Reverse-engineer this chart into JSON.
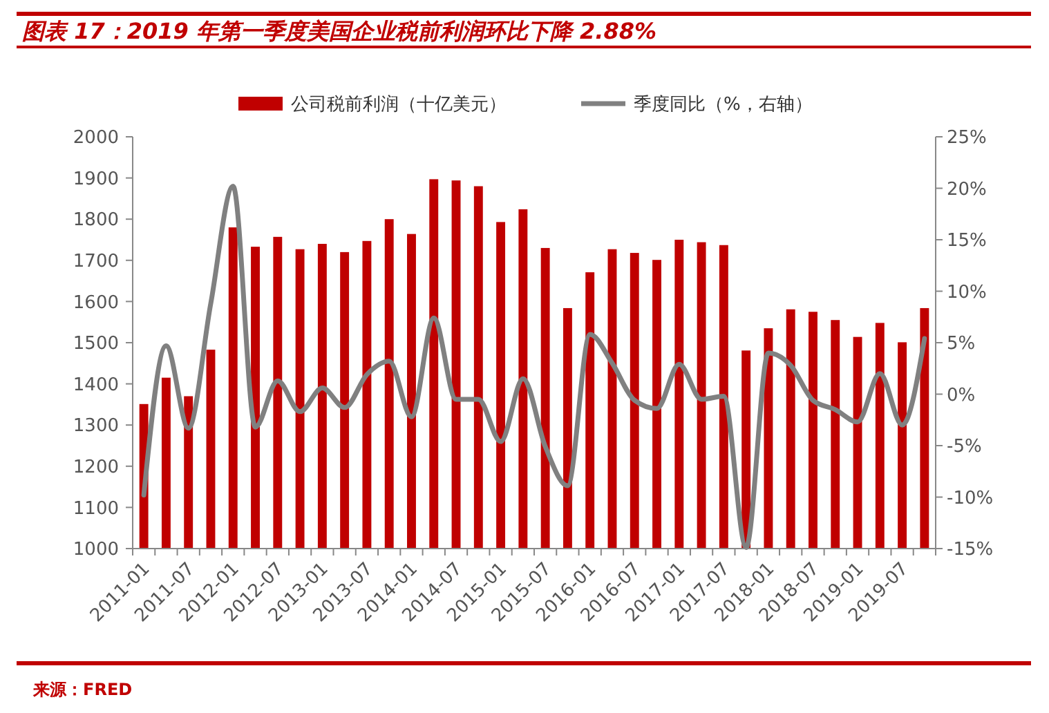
{
  "chart_data": {
    "type": "bar",
    "title": "图表 17：2019 年第一季度美国企业税前利润环比下降 2.88%",
    "categories": [
      "2011-01",
      null,
      "2011-07",
      null,
      "2012-01",
      null,
      "2012-07",
      null,
      "2013-01",
      null,
      "2013-07",
      null,
      "2014-01",
      null,
      "2014-07",
      null,
      "2015-01",
      null,
      "2015-07",
      null,
      "2016-01",
      null,
      "2016-07",
      null,
      "2017-01",
      null,
      "2017-07",
      null,
      "2018-01",
      null,
      "2018-07",
      null,
      "2019-01",
      null,
      "2019-07",
      null
    ],
    "series": [
      {
        "name": "公司税前利润（十亿美元）",
        "type": "bar",
        "color": "#c00000",
        "values": [
          1351,
          1415,
          1370,
          1483,
          1780,
          1733,
          1757,
          1727,
          1740,
          1720,
          1747,
          1800,
          1764,
          1897,
          1894,
          1880,
          1793,
          1824,
          1730,
          1584,
          1671,
          1727,
          1718,
          1701,
          1750,
          1744,
          1737,
          1481,
          1535,
          1581,
          1575,
          1555,
          1514,
          1548,
          1501,
          1584
        ]
      },
      {
        "name": "季度同比（%，右轴）",
        "type": "line",
        "axis": "y2",
        "color": "#808080",
        "values": [
          -9.8,
          4.7,
          -3.3,
          8.8,
          20.2,
          -3.2,
          1.3,
          -1.7,
          0.6,
          -1.3,
          1.9,
          3.2,
          -2.2,
          7.4,
          -0.5,
          -0.5,
          -4.6,
          1.5,
          -5.1,
          -8.9,
          5.8,
          3.0,
          -0.6,
          -1.4,
          2.9,
          -0.5,
          -0.2,
          -14.9,
          4.0,
          2.8,
          -0.6,
          -1.5,
          -2.7,
          2.0,
          -3.0,
          5.4
        ]
      }
    ],
    "ylim": [
      1000,
      2000
    ],
    "yticks": [
      1000,
      1100,
      1200,
      1300,
      1400,
      1500,
      1600,
      1700,
      1800,
      1900,
      2000
    ],
    "y2lim": [
      -15,
      25
    ],
    "y2ticks": [
      {
        "value": -15,
        "label": "-15%"
      },
      {
        "value": -10,
        "label": "-10%"
      },
      {
        "value": -5,
        "label": "-5%"
      },
      {
        "value": 0,
        "label": "0%"
      },
      {
        "value": 5,
        "label": "5%"
      },
      {
        "value": 10,
        "label": "10%"
      },
      {
        "value": 15,
        "label": "15%"
      },
      {
        "value": 20,
        "label": "20%"
      },
      {
        "value": 25,
        "label": "25%"
      }
    ],
    "legend": "top",
    "grid": false,
    "marker": "none",
    "line_style": "solid",
    "annotations": [
      "来源：FRED"
    ]
  }
}
